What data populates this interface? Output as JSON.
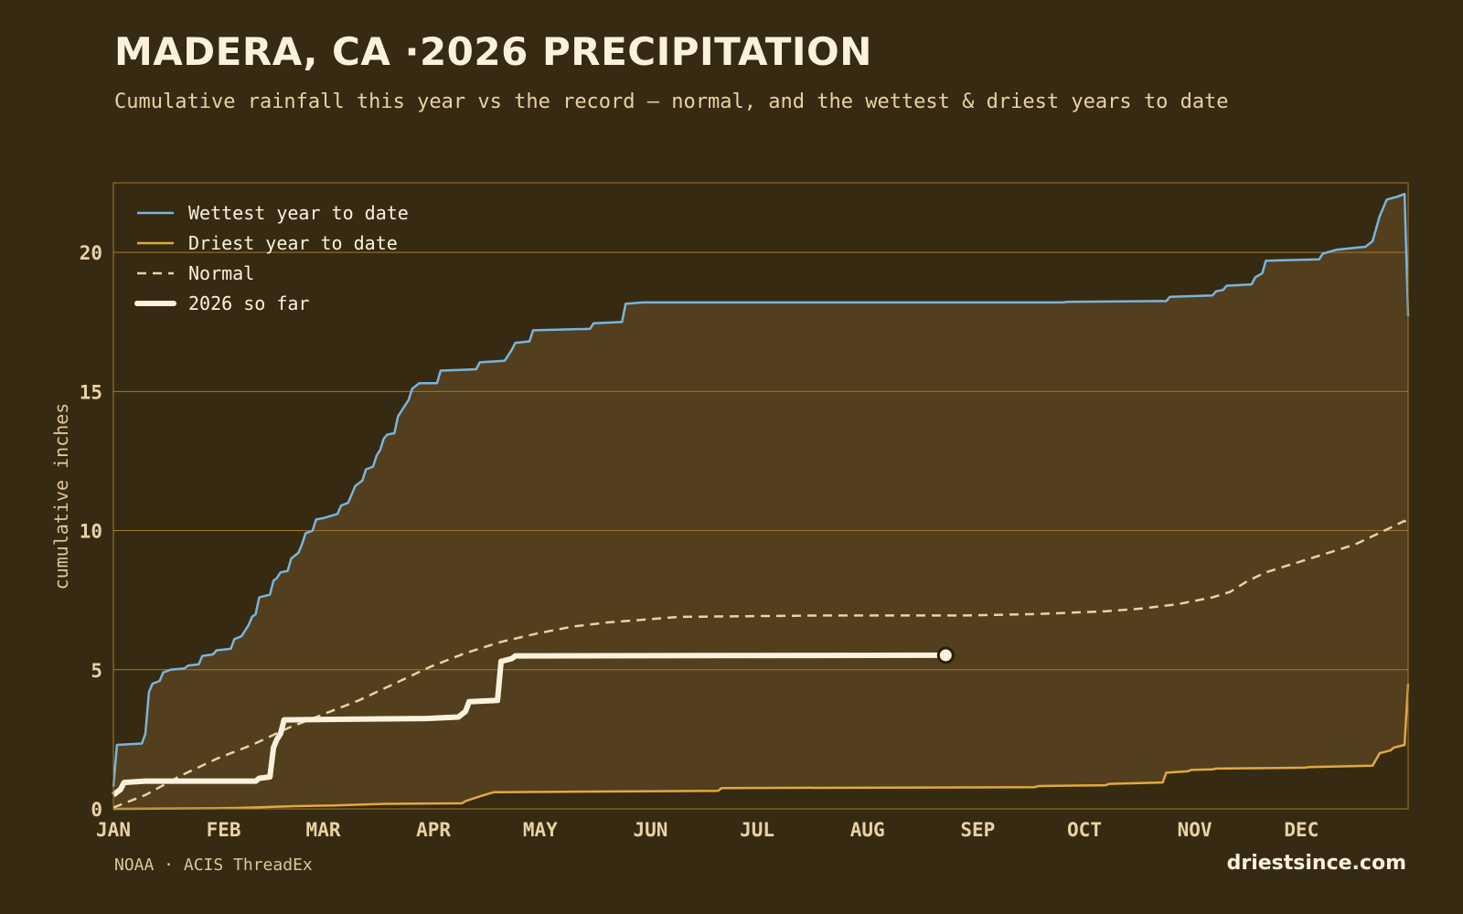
{
  "header": {
    "title": "MADERA, CA ·2026 PRECIPITATION",
    "subtitle": "Cumulative rainfall this year vs the record — normal, and the wettest & driest years to date"
  },
  "footer": {
    "source": "NOAA · ACIS ThreadEx",
    "site": "driestsince.com"
  },
  "colors": {
    "background": "#372a12",
    "band_fill": "#533e1e",
    "wettest": "#7ab4dc",
    "driest": "#e0aa3e",
    "normal": "#e8d3a6",
    "current": "#fbf2dd",
    "grid": "#a07a2e"
  },
  "chart_data": {
    "type": "line",
    "ylabel": "cumulative inches",
    "xlabel": "",
    "x_unit": "day of year",
    "xlim": [
      1,
      365
    ],
    "ylim": [
      0,
      22.5
    ],
    "yticks": [
      0,
      5,
      10,
      15,
      20
    ],
    "grid": "horizontal",
    "legend_position": "top-left",
    "month_ticks": [
      {
        "label": "JAN",
        "day": 1
      },
      {
        "label": "FEB",
        "day": 32
      },
      {
        "label": "MAR",
        "day": 60
      },
      {
        "label": "APR",
        "day": 91
      },
      {
        "label": "MAY",
        "day": 121
      },
      {
        "label": "JUN",
        "day": 152
      },
      {
        "label": "JUL",
        "day": 182
      },
      {
        "label": "AUG",
        "day": 213
      },
      {
        "label": "SEP",
        "day": 244
      },
      {
        "label": "OCT",
        "day": 274
      },
      {
        "label": "NOV",
        "day": 305
      },
      {
        "label": "DEC",
        "day": 335
      }
    ],
    "series": [
      {
        "name": "Wettest year to date",
        "style": "solid",
        "points": [
          [
            1,
            0.8
          ],
          [
            2,
            2.3
          ],
          [
            9,
            2.35
          ],
          [
            10,
            2.7
          ],
          [
            11,
            4.2
          ],
          [
            12,
            4.5
          ],
          [
            14,
            4.6
          ],
          [
            15,
            4.9
          ],
          [
            17,
            5.0
          ],
          [
            21,
            5.05
          ],
          [
            22,
            5.15
          ],
          [
            25,
            5.2
          ],
          [
            26,
            5.5
          ],
          [
            29,
            5.55
          ],
          [
            30,
            5.7
          ],
          [
            34,
            5.75
          ],
          [
            35,
            6.1
          ],
          [
            37,
            6.2
          ],
          [
            39,
            6.6
          ],
          [
            40,
            6.9
          ],
          [
            41,
            7.0
          ],
          [
            42,
            7.6
          ],
          [
            45,
            7.7
          ],
          [
            46,
            8.2
          ],
          [
            47,
            8.3
          ],
          [
            48,
            8.5
          ],
          [
            50,
            8.55
          ],
          [
            51,
            9.0
          ],
          [
            53,
            9.2
          ],
          [
            54,
            9.5
          ],
          [
            55,
            9.9
          ],
          [
            57,
            10.0
          ],
          [
            58,
            10.4
          ],
          [
            60,
            10.45
          ],
          [
            64,
            10.6
          ],
          [
            65,
            10.9
          ],
          [
            67,
            11.0
          ],
          [
            68,
            11.3
          ],
          [
            69,
            11.6
          ],
          [
            71,
            11.8
          ],
          [
            72,
            12.2
          ],
          [
            74,
            12.3
          ],
          [
            75,
            12.7
          ],
          [
            76,
            12.9
          ],
          [
            77,
            13.3
          ],
          [
            78,
            13.45
          ],
          [
            80,
            13.5
          ],
          [
            81,
            14.1
          ],
          [
            82,
            14.3
          ],
          [
            83,
            14.5
          ],
          [
            84,
            14.7
          ],
          [
            85,
            15.1
          ],
          [
            87,
            15.3
          ],
          [
            92,
            15.3
          ],
          [
            93,
            15.75
          ],
          [
            103,
            15.8
          ],
          [
            104,
            16.05
          ],
          [
            111,
            16.1
          ],
          [
            113,
            16.5
          ],
          [
            114,
            16.75
          ],
          [
            118,
            16.8
          ],
          [
            119,
            17.2
          ],
          [
            135,
            17.25
          ],
          [
            136,
            17.45
          ],
          [
            144,
            17.5
          ],
          [
            145,
            18.15
          ],
          [
            150,
            18.2
          ],
          [
            268,
            18.2
          ],
          [
            269,
            18.22
          ],
          [
            297,
            18.25
          ],
          [
            298,
            18.4
          ],
          [
            310,
            18.45
          ],
          [
            311,
            18.6
          ],
          [
            313,
            18.65
          ],
          [
            314,
            18.8
          ],
          [
            321,
            18.85
          ],
          [
            322,
            19.1
          ],
          [
            324,
            19.25
          ],
          [
            325,
            19.7
          ],
          [
            340,
            19.75
          ],
          [
            341,
            19.95
          ],
          [
            345,
            20.1
          ],
          [
            353,
            20.2
          ],
          [
            355,
            20.4
          ],
          [
            357,
            21.3
          ],
          [
            359,
            21.9
          ],
          [
            362,
            22.0
          ],
          [
            364,
            22.1
          ],
          [
            365,
            17.7
          ]
        ]
      },
      {
        "name": "Driest year to date",
        "style": "solid",
        "points": [
          [
            1,
            0
          ],
          [
            30,
            0.02
          ],
          [
            38,
            0.04
          ],
          [
            52,
            0.1
          ],
          [
            63,
            0.12
          ],
          [
            77,
            0.18
          ],
          [
            99,
            0.2
          ],
          [
            100,
            0.28
          ],
          [
            104,
            0.45
          ],
          [
            108,
            0.6
          ],
          [
            171,
            0.65
          ],
          [
            172,
            0.75
          ],
          [
            260,
            0.78
          ],
          [
            261,
            0.82
          ],
          [
            280,
            0.85
          ],
          [
            281,
            0.9
          ],
          [
            296,
            0.95
          ],
          [
            297,
            1.3
          ],
          [
            303,
            1.35
          ],
          [
            304,
            1.4
          ],
          [
            310,
            1.42
          ],
          [
            311,
            1.45
          ],
          [
            336,
            1.48
          ],
          [
            337,
            1.5
          ],
          [
            355,
            1.55
          ],
          [
            357,
            2.0
          ],
          [
            360,
            2.1
          ],
          [
            361,
            2.2
          ],
          [
            364,
            2.3
          ],
          [
            365,
            4.5
          ]
        ]
      },
      {
        "name": "Normal",
        "style": "dashed",
        "points": [
          [
            1,
            0.05
          ],
          [
            10,
            0.5
          ],
          [
            20,
            1.2
          ],
          [
            30,
            1.8
          ],
          [
            40,
            2.3
          ],
          [
            50,
            2.9
          ],
          [
            60,
            3.4
          ],
          [
            70,
            3.9
          ],
          [
            80,
            4.5
          ],
          [
            90,
            5.1
          ],
          [
            100,
            5.6
          ],
          [
            110,
            6.0
          ],
          [
            120,
            6.3
          ],
          [
            130,
            6.55
          ],
          [
            140,
            6.7
          ],
          [
            150,
            6.8
          ],
          [
            160,
            6.9
          ],
          [
            200,
            6.95
          ],
          [
            240,
            6.95
          ],
          [
            260,
            7.0
          ],
          [
            280,
            7.1
          ],
          [
            290,
            7.2
          ],
          [
            300,
            7.35
          ],
          [
            310,
            7.6
          ],
          [
            315,
            7.8
          ],
          [
            320,
            8.2
          ],
          [
            325,
            8.5
          ],
          [
            330,
            8.7
          ],
          [
            340,
            9.1
          ],
          [
            350,
            9.5
          ],
          [
            360,
            10.1
          ],
          [
            364,
            10.35
          ],
          [
            365,
            10.2
          ]
        ]
      },
      {
        "name": "2026 so far",
        "style": "thick",
        "points": [
          [
            1,
            0.5
          ],
          [
            3,
            0.7
          ],
          [
            4,
            0.95
          ],
          [
            10,
            1.0
          ],
          [
            41,
            1.0
          ],
          [
            42,
            1.1
          ],
          [
            45,
            1.15
          ],
          [
            46,
            2.2
          ],
          [
            47,
            2.5
          ],
          [
            48,
            2.7
          ],
          [
            49,
            3.2
          ],
          [
            89,
            3.25
          ],
          [
            98,
            3.3
          ],
          [
            100,
            3.5
          ],
          [
            101,
            3.85
          ],
          [
            109,
            3.9
          ],
          [
            110,
            5.3
          ],
          [
            113,
            5.4
          ],
          [
            114,
            5.5
          ],
          [
            235,
            5.52
          ]
        ],
        "marker_end": true
      }
    ]
  }
}
